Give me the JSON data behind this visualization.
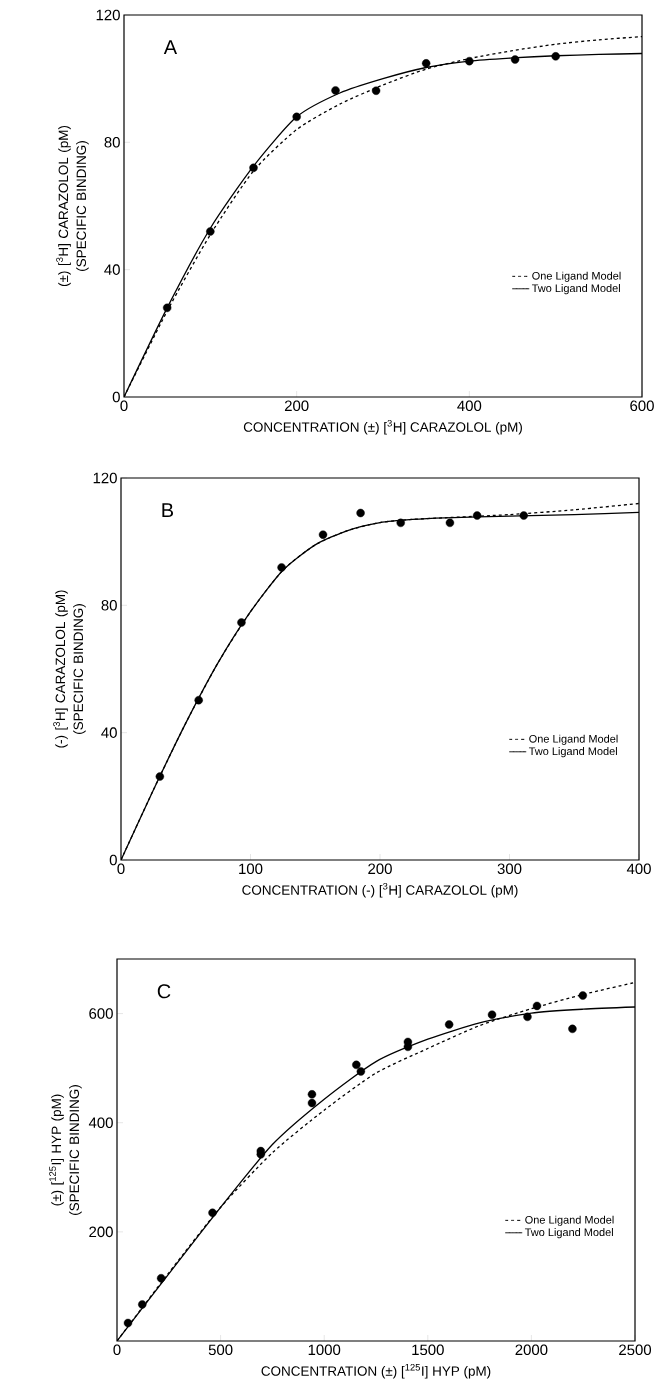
{
  "chart_data": [
    {
      "type": "line",
      "title": "A",
      "xlabel": "CONCENTRATION (±) [$^{3}$H] CARAZOLOL (pM)",
      "ylabel": "(±) [$^{3}$H] CARAZOLOL (pM) (SPECIFIC BINDING)",
      "xlim": [
        0,
        600
      ],
      "ylim": [
        0,
        120
      ],
      "xticks": [
        0,
        200,
        400,
        600
      ],
      "yticks": [
        0,
        40,
        80,
        120
      ],
      "legend": "bottom right",
      "series": [
        {
          "type": "scatter",
          "color": "#000000",
          "marker": "circle",
          "x": [
            50,
            100,
            150,
            200,
            245,
            292,
            350,
            400,
            453,
            500
          ],
          "values": [
            28,
            52,
            72,
            88,
            96.3,
            96.2,
            104.8,
            105.5,
            106,
            107
          ]
        },
        {
          "name": "One Ligand Model",
          "color": "#000000",
          "line_style": "dashed",
          "x": [
            0,
            50,
            100,
            150,
            200,
            250,
            300,
            350,
            400,
            450,
            500,
            550,
            600
          ],
          "values": [
            0,
            27,
            51,
            71,
            84,
            92,
            98,
            103,
            106.3,
            108.8,
            110.8,
            112.2,
            113.2
          ]
        },
        {
          "name": "Two Ligand Model",
          "color": "#000000",
          "line_style": "solid",
          "x": [
            0,
            50,
            100,
            150,
            200,
            250,
            300,
            350,
            400,
            450,
            500,
            550,
            600
          ],
          "values": [
            0,
            28,
            53,
            72.5,
            88,
            95.5,
            100,
            103.5,
            105.5,
            106.5,
            107.2,
            107.6,
            107.9
          ]
        }
      ]
    },
    {
      "type": "line",
      "title": "B",
      "xlabel": "CONCENTRATION (-) [$^{3}$H] CARAZOLOL (pM)",
      "ylabel": "(-) [$^{3}$H] CARAZOLOL (pM) (SPECIFIC BINDING)",
      "xlim": [
        0,
        400
      ],
      "ylim": [
        0,
        120
      ],
      "xticks": [
        0,
        100,
        200,
        300,
        400
      ],
      "yticks": [
        0,
        40,
        80,
        120
      ],
      "legend": "bottom right",
      "series": [
        {
          "type": "scatter",
          "color": "#000000",
          "marker": "circle",
          "x": [
            30,
            60,
            93,
            124,
            156,
            185,
            216,
            254,
            275,
            311
          ],
          "values": [
            26.2,
            50.2,
            74.6,
            91.9,
            102.2,
            109,
            105.9,
            105.9,
            108.2,
            108.2
          ]
        },
        {
          "name": "One Ligand Model",
          "color": "#000000",
          "line_style": "dashed",
          "x": [
            0,
            25,
            50,
            75,
            100,
            125,
            150,
            175,
            200,
            225,
            250,
            300,
            350,
            400
          ],
          "values": [
            0,
            22,
            43,
            62,
            78,
            91,
            99,
            103.5,
            106,
            107,
            107.5,
            108.5,
            110,
            112
          ]
        },
        {
          "name": "Two Ligand Model",
          "color": "#000000",
          "line_style": "solid",
          "x": [
            0,
            25,
            50,
            75,
            100,
            125,
            150,
            175,
            200,
            225,
            250,
            300,
            350,
            400
          ],
          "values": [
            0,
            22,
            43,
            62,
            78,
            91,
            99,
            103.5,
            106,
            107,
            107.5,
            108,
            108.5,
            109.2
          ]
        }
      ]
    },
    {
      "type": "line",
      "title": "C",
      "xlabel": "CONCENTRATION (±) [$^{125}$I] HYP (pM)",
      "ylabel": "(±) [$^{125}$I] HYP (pM) (SPECIFIC BINDING)",
      "xlim": [
        0,
        2500
      ],
      "ylim": [
        0,
        700
      ],
      "xticks": [
        0,
        500,
        1000,
        1500,
        2000,
        2500
      ],
      "yticks": [
        200,
        400,
        600
      ],
      "legend": "bottom right",
      "series": [
        {
          "type": "scatter",
          "color": "#000000",
          "marker": "circle",
          "x": [
            53,
            122,
            213,
            461,
            694,
            694,
            941,
            941,
            1155,
            1177,
            1404,
            1404,
            1603,
            1810,
            1981,
            2027,
            2198,
            2248
          ],
          "values": [
            33,
            67,
            115,
            235,
            348,
            342,
            452,
            436,
            506,
            494,
            548,
            539,
            580,
            598,
            594,
            614,
            572,
            633
          ]
        },
        {
          "name": "One Ligand Model",
          "color": "#000000",
          "line_style": "dashed",
          "x": [
            0,
            250,
            500,
            750,
            1000,
            1250,
            1500,
            1750,
            2000,
            2250,
            2500
          ],
          "values": [
            0,
            125,
            245,
            345,
            423,
            491,
            536,
            578,
            609,
            635,
            657
          ]
        },
        {
          "name": "Two Ligand Model",
          "color": "#000000",
          "line_style": "solid",
          "x": [
            0,
            250,
            500,
            750,
            1000,
            1250,
            1500,
            1750,
            2000,
            2250,
            2500
          ],
          "values": [
            0,
            123,
            245,
            360,
            443,
            512,
            553,
            583,
            601,
            608,
            612
          ]
        }
      ]
    }
  ]
}
